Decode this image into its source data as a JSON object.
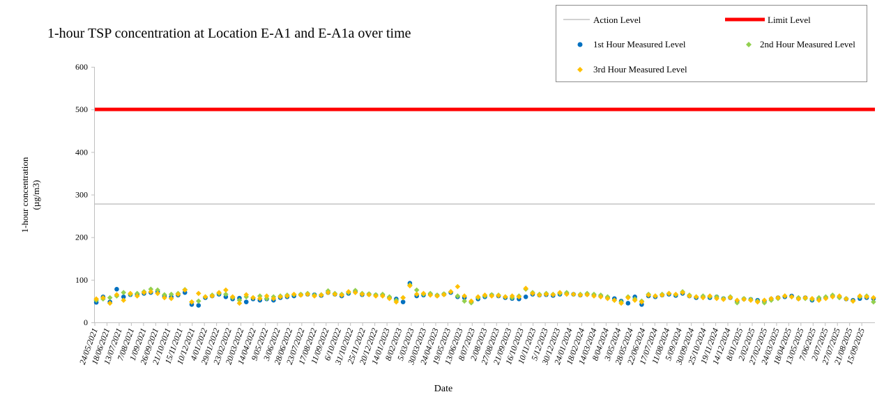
{
  "chart_data": {
    "type": "scatter",
    "title": "1-hour TSP concentration at Location E-A1 and E-A1a over time",
    "xlabel": "Date",
    "ylabel": "1-hour concentration (µg/m3)",
    "ylabel_lines": [
      "1-hour concentration",
      "(µg/m3)"
    ],
    "ylim": [
      0,
      600
    ],
    "yticks": [
      0,
      100,
      200,
      300,
      400,
      500,
      600
    ],
    "xlim": [
      "2021-05-24",
      "2025-10-12"
    ],
    "xtick_labels": [
      "24/05/2021",
      "18/06/2021",
      "13/07/2021",
      "7/08/2021",
      "1/09/2021",
      "26/09/2021",
      "21/10/2021",
      "15/11/2021",
      "10/12/2021",
      "4/01/2022",
      "29/01/2022",
      "23/02/2022",
      "20/03/2022",
      "14/04/2022",
      "9/05/2022",
      "3/06/2022",
      "28/06/2022",
      "23/07/2022",
      "17/08/2022",
      "11/09/2022",
      "6/10/2022",
      "31/10/2022",
      "25/11/2022",
      "20/12/2022",
      "14/01/2023",
      "8/02/2023",
      "5/03/2023",
      "30/03/2023",
      "24/04/2023",
      "19/05/2023",
      "13/06/2023",
      "8/07/2023",
      "2/08/2023",
      "27/08/2023",
      "21/09/2023",
      "16/10/2023",
      "10/11/2023",
      "5/12/2023",
      "30/12/2023",
      "24/01/2024",
      "18/02/2024",
      "14/03/2024",
      "8/04/2024",
      "3/05/2024",
      "28/05/2024",
      "22/06/2024",
      "17/07/2024",
      "11/08/2024",
      "5/09/2024",
      "30/09/2024",
      "25/10/2024",
      "19/11/2024",
      "14/12/2024",
      "8/01/2025",
      "2/02/2025",
      "27/02/2025",
      "24/03/2025",
      "18/04/2025",
      "13/05/2025",
      "7/06/2025",
      "2/07/2025",
      "27/07/2025",
      "21/08/2025",
      "15/09/2025"
    ],
    "grid": false,
    "legend_placement": "top-right",
    "reference_lines": [
      {
        "name": "Action Level",
        "value": 278,
        "color": "#a6a6a6"
      },
      {
        "name": "Limit Level",
        "value": 500,
        "color": "#ff0000"
      }
    ],
    "x": [
      "2021-05-27",
      "2021-06-10",
      "2021-06-24",
      "2021-07-08",
      "2021-07-22",
      "2021-08-05",
      "2021-08-19",
      "2021-09-02",
      "2021-09-16",
      "2021-09-30",
      "2021-10-14",
      "2021-10-28",
      "2021-11-11",
      "2021-11-25",
      "2021-12-09",
      "2021-12-23",
      "2022-01-06",
      "2022-01-20",
      "2022-02-03",
      "2022-02-17",
      "2022-03-03",
      "2022-03-17",
      "2022-03-31",
      "2022-04-14",
      "2022-04-28",
      "2022-05-12",
      "2022-05-26",
      "2022-06-09",
      "2022-06-23",
      "2022-07-07",
      "2022-07-21",
      "2022-08-04",
      "2022-08-18",
      "2022-09-01",
      "2022-09-15",
      "2022-09-29",
      "2022-10-13",
      "2022-10-27",
      "2022-11-10",
      "2022-11-24",
      "2022-12-08",
      "2022-12-22",
      "2023-01-05",
      "2023-01-19",
      "2023-02-02",
      "2023-02-16",
      "2023-03-02",
      "2023-03-16",
      "2023-03-30",
      "2023-04-13",
      "2023-04-27",
      "2023-05-11",
      "2023-05-25",
      "2023-06-08",
      "2023-06-22",
      "2023-07-06",
      "2023-07-20",
      "2023-08-03",
      "2023-08-17",
      "2023-08-31",
      "2023-09-14",
      "2023-09-28",
      "2023-10-12",
      "2023-10-26",
      "2023-11-09",
      "2023-11-23",
      "2023-12-07",
      "2023-12-21",
      "2024-01-04",
      "2024-01-18",
      "2024-02-01",
      "2024-02-15",
      "2024-02-29",
      "2024-03-14",
      "2024-03-28",
      "2024-04-11",
      "2024-04-25",
      "2024-05-09",
      "2024-05-23",
      "2024-06-06",
      "2024-06-20",
      "2024-07-04",
      "2024-07-18",
      "2024-08-01",
      "2024-08-15",
      "2024-08-29",
      "2024-09-12",
      "2024-09-26",
      "2024-10-10",
      "2024-10-24",
      "2024-11-07",
      "2024-11-21",
      "2024-12-05",
      "2024-12-19",
      "2025-01-02",
      "2025-01-16",
      "2025-01-30",
      "2025-02-13",
      "2025-02-27",
      "2025-03-13",
      "2025-03-27",
      "2025-04-10",
      "2025-04-24",
      "2025-05-08",
      "2025-05-22",
      "2025-06-05",
      "2025-06-19",
      "2025-07-03",
      "2025-07-17",
      "2025-07-31",
      "2025-08-14",
      "2025-08-28",
      "2025-09-11",
      "2025-09-25",
      "2025-10-09"
    ],
    "series": [
      {
        "name": "1st Hour Measured Level",
        "color": "#0070c0",
        "marker": "circle",
        "values": [
          47,
          60,
          48,
          78,
          60,
          65,
          66,
          68,
          70,
          72,
          62,
          60,
          64,
          70,
          42,
          40,
          58,
          62,
          66,
          60,
          55,
          57,
          48,
          55,
          52,
          55,
          52,
          58,
          60,
          62,
          65,
          66,
          65,
          63,
          70,
          66,
          62,
          68,
          72,
          65,
          66,
          64,
          64,
          58,
          55,
          48,
          92,
          62,
          64,
          66,
          63,
          66,
          70,
          60,
          58,
          48,
          55,
          60,
          64,
          62,
          58,
          56,
          55,
          60,
          66,
          64,
          65,
          63,
          66,
          68,
          66,
          64,
          66,
          64,
          62,
          58,
          56,
          50,
          45,
          60,
          42,
          62,
          60,
          64,
          66,
          63,
          68,
          62,
          58,
          60,
          58,
          60,
          56,
          58,
          50,
          55,
          54,
          52,
          50,
          55,
          58,
          60,
          62,
          56,
          58,
          52,
          55,
          58,
          62,
          60,
          55,
          52,
          56,
          58,
          56
        ]
      },
      {
        "name": "2nd Hour Measured Level",
        "color": "#92d050",
        "marker": "diamond",
        "values": [
          52,
          55,
          58,
          62,
          70,
          66,
          68,
          72,
          78,
          76,
          65,
          66,
          68,
          77,
          48,
          50,
          60,
          64,
          68,
          66,
          58,
          52,
          60,
          58,
          62,
          56,
          60,
          62,
          64,
          65,
          66,
          68,
          64,
          65,
          74,
          68,
          66,
          70,
          75,
          68,
          67,
          65,
          66,
          60,
          52,
          58,
          88,
          76,
          66,
          68,
          64,
          67,
          72,
          62,
          50,
          46,
          58,
          62,
          65,
          64,
          60,
          58,
          62,
          78,
          70,
          66,
          68,
          66,
          68,
          70,
          66,
          66,
          68,
          66,
          64,
          60,
          52,
          48,
          60,
          55,
          50,
          66,
          62,
          66,
          68,
          65,
          72,
          64,
          60,
          62,
          60,
          60,
          56,
          60,
          46,
          56,
          54,
          50,
          46,
          52,
          56,
          62,
          60,
          58,
          56,
          54,
          58,
          60,
          64,
          58,
          56,
          50,
          60,
          62,
          48
        ]
      },
      {
        "name": "3rd Hour Measured Level",
        "color": "#ffc000",
        "marker": "diamond",
        "values": [
          55,
          58,
          45,
          65,
          52,
          68,
          62,
          70,
          72,
          68,
          58,
          56,
          66,
          76,
          48,
          68,
          60,
          62,
          70,
          76,
          60,
          45,
          65,
          58,
          56,
          62,
          56,
          60,
          62,
          66,
          64,
          66,
          62,
          64,
          70,
          66,
          64,
          72,
          70,
          66,
          65,
          62,
          62,
          56,
          48,
          58,
          86,
          66,
          68,
          64,
          62,
          65,
          72,
          84,
          62,
          50,
          60,
          64,
          62,
          63,
          60,
          62,
          60,
          80,
          68,
          64,
          66,
          65,
          70,
          66,
          66,
          64,
          65,
          62,
          60,
          56,
          52,
          45,
          58,
          52,
          48,
          64,
          62,
          64,
          68,
          66,
          70,
          62,
          60,
          58,
          62,
          56,
          54,
          58,
          52,
          54,
          52,
          48,
          52,
          56,
          58,
          62,
          60,
          55,
          58,
          56,
          52,
          56,
          60,
          62,
          55,
          50,
          62,
          60,
          58
        ]
      }
    ]
  }
}
